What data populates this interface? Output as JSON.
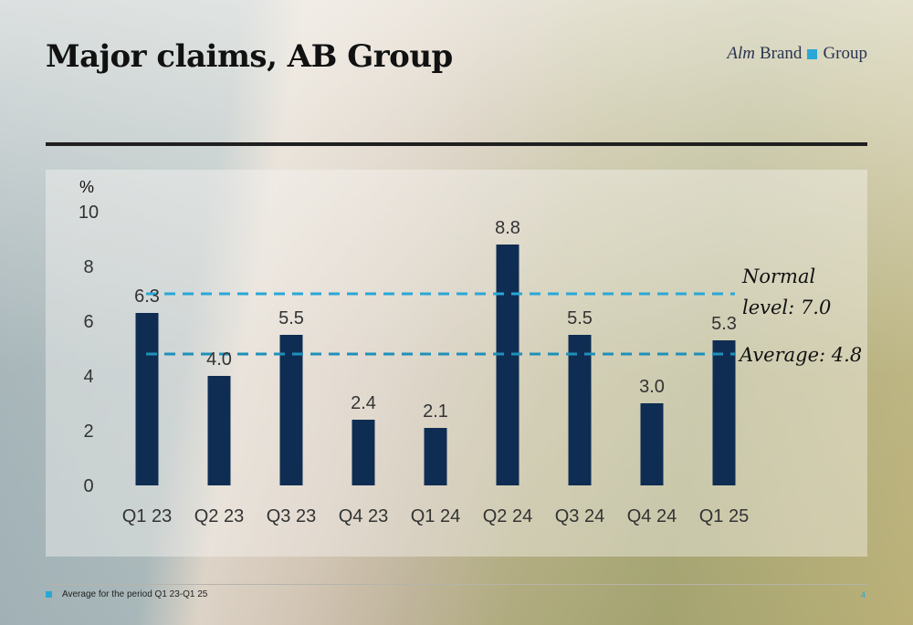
{
  "slide": {
    "title": "Major claims, AB Group",
    "logo": {
      "part1": "Alm",
      "part2": "Brand",
      "part3": "Group"
    },
    "footnote": "Average for the period Q1 23-Q1 25",
    "page_number": "4"
  },
  "colors": {
    "bar": "#0f2d52",
    "normal_line": "#2aa7d6",
    "average_line": "#1f90b8",
    "accent": "#2aa7d6"
  },
  "chart_data": {
    "type": "bar",
    "title": "",
    "ylabel": "%",
    "xlabel": "",
    "ylim": [
      0,
      10
    ],
    "yticks": [
      0,
      2,
      4,
      6,
      8,
      10
    ],
    "categories": [
      "Q1 23",
      "Q2 23",
      "Q3 23",
      "Q4 23",
      "Q1 24",
      "Q2 24",
      "Q3 24",
      "Q4 24",
      "Q1 25"
    ],
    "values": [
      6.3,
      4.0,
      5.5,
      2.4,
      2.1,
      8.8,
      5.5,
      3.0,
      5.3
    ],
    "value_labels": [
      "6.3",
      "4.0",
      "5.5",
      "2.4",
      "2.1",
      "8.8",
      "5.5",
      "3.0",
      "5.3"
    ],
    "grid": false,
    "reference_lines": [
      {
        "name": "normal",
        "value": 7.0,
        "label_line1": "Normal",
        "label_line2": "level: 7.0",
        "style": "dashed"
      },
      {
        "name": "average",
        "value": 4.8,
        "label_line1": "Average: 4.8",
        "style": "dashed"
      }
    ]
  }
}
